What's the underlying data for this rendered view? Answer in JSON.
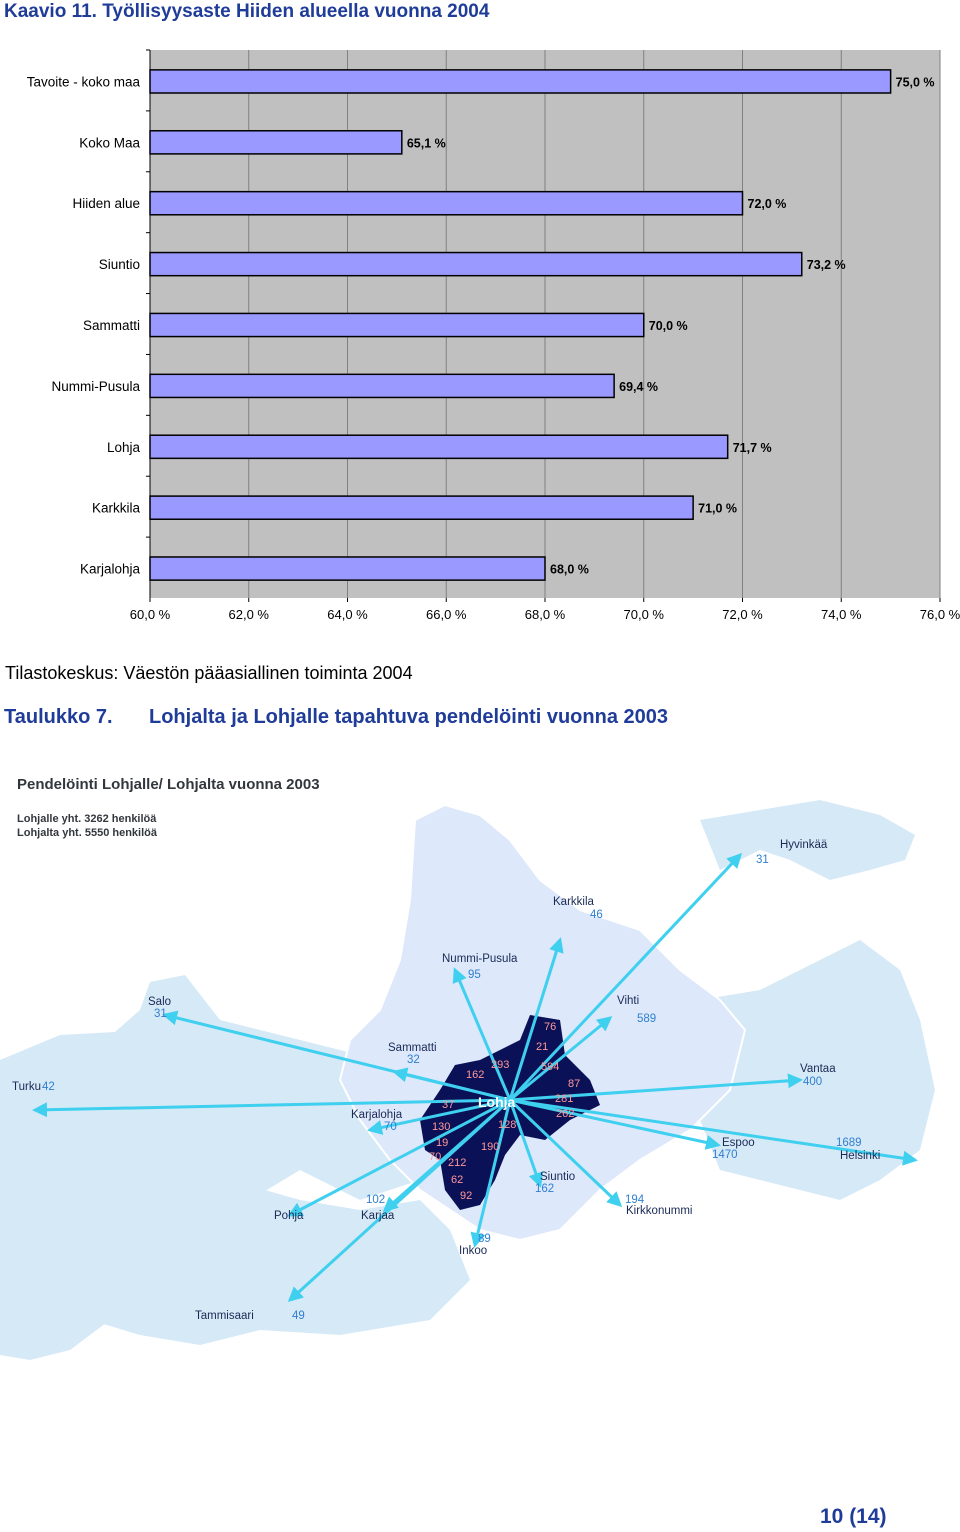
{
  "header": {
    "title": "Kaavio 11. Työllisyysaste Hiiden alueella vuonna 2004"
  },
  "chart_data": {
    "type": "bar",
    "orientation": "horizontal",
    "categories": [
      "Tavoite  - koko maa",
      "Koko Maa",
      "Hiiden alue",
      "Siuntio",
      "Sammatti",
      "Nummi-Pusula",
      "Lohja",
      "Karkkila",
      "Karjalohja"
    ],
    "values": [
      75.0,
      65.1,
      72.0,
      73.2,
      70.0,
      69.4,
      71.7,
      71.0,
      68.0
    ],
    "value_labels": [
      "75,0 %",
      "65,1 %",
      "72,0 %",
      "73,2 %",
      "70,0 %",
      "69,4 %",
      "71,7 %",
      "71,0 %",
      "68,0 %"
    ],
    "xlim": [
      60,
      76
    ],
    "x_ticks": [
      60,
      62,
      64,
      66,
      68,
      70,
      72,
      74,
      76
    ],
    "x_tick_labels": [
      "60,0 %",
      "62,0 %",
      "64,0 %",
      "66,0 %",
      "68,0 %",
      "70,0 %",
      "72,0 %",
      "74,0 %",
      "76,0 %"
    ],
    "grid": true,
    "colors": {
      "bar": "#9999ff",
      "plot_bg": "#c0c0c0",
      "bar_edge": "#000000"
    }
  },
  "source": {
    "text": "Tilastokeskus: Väestön pääasiallinen toiminta 2004"
  },
  "table_title": {
    "number": "Taulukko 7.",
    "text": "Lohjalta ja Lohjalle tapahtuva pendelöinti vuonna 2003"
  },
  "map": {
    "title": "Pendelöinti Lohjalle/ Lohjalta vuonna 2003",
    "subtitle1": "Lohjalle yht.  3262 henkilöä",
    "subtitle2": "Lohjalta yht. 5550 henkilöä",
    "center": "Lohja",
    "places": [
      {
        "name": "Hyvinkää",
        "value": "31"
      },
      {
        "name": "Karkkila",
        "value": "46"
      },
      {
        "name": "Nummi-Pusula",
        "value": "95"
      },
      {
        "name": "Salo",
        "value": "31"
      },
      {
        "name": "Vihti",
        "value": "589"
      },
      {
        "name": "Sammatti",
        "value": "32"
      },
      {
        "name": "Turku",
        "value": "42"
      },
      {
        "name": "Vantaa",
        "value": "400"
      },
      {
        "name": "Karjalohja",
        "value": "70"
      },
      {
        "name": "Espoo",
        "value": "1470"
      },
      {
        "name": "Helsinki",
        "value": "1689"
      },
      {
        "name": "Siuntio",
        "value": "162"
      },
      {
        "name": "Karjaa",
        "value": "102"
      },
      {
        "name": "Pohja",
        "value": ""
      },
      {
        "name": "Kirkkonummi",
        "value": "194"
      },
      {
        "name": "Inkoo",
        "value": "89"
      },
      {
        "name": "Tammisaari",
        "value": "49"
      }
    ],
    "inflow_values": [
      "76",
      "21",
      "293",
      "162",
      "594",
      "87",
      "37",
      "281",
      "262",
      "130",
      "128",
      "19",
      "190",
      "70",
      "212",
      "62",
      "92"
    ],
    "colors": {
      "sea": "#ffffff",
      "land": "#d6e9f7",
      "region": "#dde8fb",
      "lohja": "#0b1156",
      "arrow": "#3fcfef"
    }
  },
  "footer": {
    "page": "10 (14)"
  }
}
